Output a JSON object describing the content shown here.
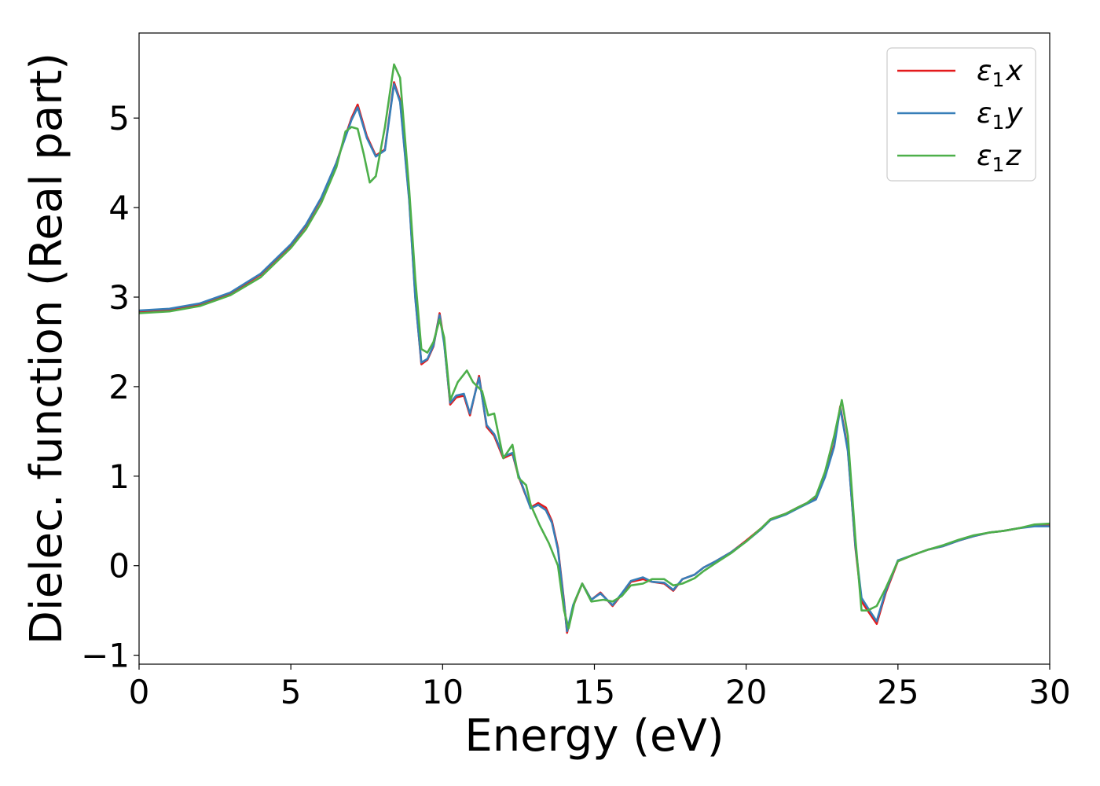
{
  "chart_data": {
    "type": "line",
    "title": "",
    "xlabel": "Energy (eV)",
    "ylabel": "Dielec. function (Real part)",
    "xlim": [
      0,
      30
    ],
    "ylim": [
      -1.1,
      5.95
    ],
    "xticks": [
      0,
      5,
      10,
      15,
      20,
      25,
      30
    ],
    "xtick_labels": [
      "0",
      "5",
      "10",
      "15",
      "20",
      "25",
      "30"
    ],
    "yticks": [
      -1,
      0,
      1,
      2,
      3,
      4,
      5
    ],
    "ytick_labels": [
      "−1",
      "0",
      "1",
      "2",
      "3",
      "4",
      "5"
    ],
    "grid": false,
    "legend_position": "top-right",
    "series": [
      {
        "name": "ε₁x",
        "legend_base": "ε",
        "legend_sub": "1",
        "legend_var": "x",
        "color": "#e41a1c",
        "points": [
          [
            0,
            2.84
          ],
          [
            1,
            2.86
          ],
          [
            2,
            2.92
          ],
          [
            3,
            3.04
          ],
          [
            4,
            3.25
          ],
          [
            5,
            3.58
          ],
          [
            5.5,
            3.8
          ],
          [
            6,
            4.1
          ],
          [
            6.5,
            4.5
          ],
          [
            7,
            5.0
          ],
          [
            7.2,
            5.15
          ],
          [
            7.5,
            4.8
          ],
          [
            7.8,
            4.58
          ],
          [
            8.1,
            4.65
          ],
          [
            8.4,
            5.4
          ],
          [
            8.6,
            5.2
          ],
          [
            8.9,
            4.1
          ],
          [
            9.1,
            3.0
          ],
          [
            9.3,
            2.25
          ],
          [
            9.5,
            2.3
          ],
          [
            9.7,
            2.45
          ],
          [
            9.9,
            2.82
          ],
          [
            10.05,
            2.5
          ],
          [
            10.25,
            1.8
          ],
          [
            10.45,
            1.88
          ],
          [
            10.7,
            1.9
          ],
          [
            10.9,
            1.68
          ],
          [
            11.2,
            2.12
          ],
          [
            11.45,
            1.55
          ],
          [
            11.7,
            1.45
          ],
          [
            12.0,
            1.2
          ],
          [
            12.3,
            1.25
          ],
          [
            12.5,
            1.0
          ],
          [
            12.7,
            0.82
          ],
          [
            12.9,
            0.65
          ],
          [
            13.15,
            0.7
          ],
          [
            13.4,
            0.65
          ],
          [
            13.6,
            0.5
          ],
          [
            13.8,
            0.2
          ],
          [
            14.0,
            -0.4
          ],
          [
            14.1,
            -0.75
          ],
          [
            14.3,
            -0.45
          ],
          [
            14.6,
            -0.2
          ],
          [
            14.9,
            -0.38
          ],
          [
            15.2,
            -0.3
          ],
          [
            15.6,
            -0.45
          ],
          [
            15.9,
            -0.32
          ],
          [
            16.2,
            -0.18
          ],
          [
            16.6,
            -0.15
          ],
          [
            16.9,
            -0.18
          ],
          [
            17.3,
            -0.2
          ],
          [
            17.6,
            -0.28
          ],
          [
            17.9,
            -0.15
          ],
          [
            18.3,
            -0.1
          ],
          [
            18.6,
            -0.02
          ],
          [
            19.0,
            0.05
          ],
          [
            19.5,
            0.15
          ],
          [
            20.0,
            0.28
          ],
          [
            20.5,
            0.42
          ],
          [
            20.8,
            0.52
          ],
          [
            21.3,
            0.58
          ],
          [
            21.7,
            0.65
          ],
          [
            22.0,
            0.7
          ],
          [
            22.3,
            0.75
          ],
          [
            22.6,
            1.0
          ],
          [
            22.9,
            1.35
          ],
          [
            23.1,
            1.78
          ],
          [
            23.35,
            1.3
          ],
          [
            23.6,
            0.2
          ],
          [
            23.8,
            -0.4
          ],
          [
            24.1,
            -0.55
          ],
          [
            24.3,
            -0.65
          ],
          [
            24.6,
            -0.3
          ],
          [
            25.0,
            0.05
          ],
          [
            25.5,
            0.12
          ],
          [
            26.0,
            0.18
          ],
          [
            26.5,
            0.22
          ],
          [
            27.0,
            0.28
          ],
          [
            27.5,
            0.33
          ],
          [
            28.0,
            0.37
          ],
          [
            28.5,
            0.39
          ],
          [
            29.0,
            0.42
          ],
          [
            29.5,
            0.45
          ],
          [
            30.0,
            0.45
          ]
        ]
      },
      {
        "name": "ε₁y",
        "legend_base": "ε",
        "legend_sub": "1",
        "legend_var": "y",
        "color": "#377eb8",
        "points": [
          [
            0,
            2.85
          ],
          [
            1,
            2.87
          ],
          [
            2,
            2.93
          ],
          [
            3,
            3.05
          ],
          [
            4,
            3.26
          ],
          [
            5,
            3.59
          ],
          [
            5.5,
            3.81
          ],
          [
            6,
            4.11
          ],
          [
            6.5,
            4.5
          ],
          [
            7,
            4.98
          ],
          [
            7.2,
            5.12
          ],
          [
            7.5,
            4.78
          ],
          [
            7.8,
            4.57
          ],
          [
            8.1,
            4.64
          ],
          [
            8.4,
            5.38
          ],
          [
            8.6,
            5.18
          ],
          [
            8.9,
            4.08
          ],
          [
            9.1,
            2.98
          ],
          [
            9.3,
            2.27
          ],
          [
            9.5,
            2.31
          ],
          [
            9.7,
            2.46
          ],
          [
            9.9,
            2.8
          ],
          [
            10.05,
            2.48
          ],
          [
            10.25,
            1.82
          ],
          [
            10.45,
            1.9
          ],
          [
            10.7,
            1.92
          ],
          [
            10.9,
            1.7
          ],
          [
            11.2,
            2.1
          ],
          [
            11.45,
            1.57
          ],
          [
            11.7,
            1.47
          ],
          [
            12.0,
            1.22
          ],
          [
            12.3,
            1.26
          ],
          [
            12.5,
            1.01
          ],
          [
            12.7,
            0.83
          ],
          [
            12.9,
            0.64
          ],
          [
            13.15,
            0.68
          ],
          [
            13.4,
            0.62
          ],
          [
            13.6,
            0.48
          ],
          [
            13.8,
            0.18
          ],
          [
            14.0,
            -0.42
          ],
          [
            14.1,
            -0.73
          ],
          [
            14.3,
            -0.44
          ],
          [
            14.6,
            -0.2
          ],
          [
            14.9,
            -0.38
          ],
          [
            15.2,
            -0.31
          ],
          [
            15.6,
            -0.44
          ],
          [
            15.9,
            -0.31
          ],
          [
            16.2,
            -0.17
          ],
          [
            16.6,
            -0.13
          ],
          [
            16.9,
            -0.18
          ],
          [
            17.3,
            -0.19
          ],
          [
            17.6,
            -0.27
          ],
          [
            17.9,
            -0.15
          ],
          [
            18.3,
            -0.1
          ],
          [
            18.6,
            -0.02
          ],
          [
            19.0,
            0.05
          ],
          [
            19.5,
            0.15
          ],
          [
            20.0,
            0.27
          ],
          [
            20.5,
            0.41
          ],
          [
            20.8,
            0.51
          ],
          [
            21.3,
            0.57
          ],
          [
            21.7,
            0.64
          ],
          [
            22.0,
            0.69
          ],
          [
            22.3,
            0.74
          ],
          [
            22.6,
            0.99
          ],
          [
            22.9,
            1.33
          ],
          [
            23.1,
            1.76
          ],
          [
            23.35,
            1.28
          ],
          [
            23.6,
            0.22
          ],
          [
            23.8,
            -0.36
          ],
          [
            24.1,
            -0.52
          ],
          [
            24.3,
            -0.62
          ],
          [
            24.6,
            -0.28
          ],
          [
            25.0,
            0.06
          ],
          [
            25.5,
            0.12
          ],
          [
            26.0,
            0.18
          ],
          [
            26.5,
            0.22
          ],
          [
            27.0,
            0.28
          ],
          [
            27.5,
            0.33
          ],
          [
            28.0,
            0.37
          ],
          [
            28.5,
            0.39
          ],
          [
            29.0,
            0.42
          ],
          [
            29.5,
            0.44
          ],
          [
            30.0,
            0.44
          ]
        ]
      },
      {
        "name": "ε₁z",
        "legend_base": "ε",
        "legend_sub": "1",
        "legend_var": "z",
        "color": "#4daf4a",
        "points": [
          [
            0,
            2.82
          ],
          [
            1,
            2.84
          ],
          [
            2,
            2.9
          ],
          [
            3,
            3.02
          ],
          [
            4,
            3.22
          ],
          [
            5,
            3.55
          ],
          [
            5.5,
            3.76
          ],
          [
            6,
            4.05
          ],
          [
            6.5,
            4.45
          ],
          [
            6.8,
            4.85
          ],
          [
            7.0,
            4.9
          ],
          [
            7.2,
            4.88
          ],
          [
            7.4,
            4.6
          ],
          [
            7.6,
            4.28
          ],
          [
            7.8,
            4.35
          ],
          [
            8.1,
            4.9
          ],
          [
            8.4,
            5.6
          ],
          [
            8.6,
            5.45
          ],
          [
            8.9,
            4.2
          ],
          [
            9.1,
            3.2
          ],
          [
            9.3,
            2.42
          ],
          [
            9.5,
            2.38
          ],
          [
            9.7,
            2.5
          ],
          [
            9.9,
            2.75
          ],
          [
            10.05,
            2.55
          ],
          [
            10.25,
            1.85
          ],
          [
            10.5,
            2.05
          ],
          [
            10.8,
            2.18
          ],
          [
            11.0,
            2.05
          ],
          [
            11.3,
            1.95
          ],
          [
            11.5,
            1.68
          ],
          [
            11.7,
            1.7
          ],
          [
            12.0,
            1.2
          ],
          [
            12.3,
            1.35
          ],
          [
            12.5,
            0.98
          ],
          [
            12.75,
            0.9
          ],
          [
            12.9,
            0.68
          ],
          [
            13.2,
            0.45
          ],
          [
            13.5,
            0.25
          ],
          [
            13.8,
            0.0
          ],
          [
            14.0,
            -0.5
          ],
          [
            14.15,
            -0.7
          ],
          [
            14.35,
            -0.4
          ],
          [
            14.6,
            -0.2
          ],
          [
            14.9,
            -0.4
          ],
          [
            15.3,
            -0.38
          ],
          [
            15.6,
            -0.4
          ],
          [
            15.9,
            -0.34
          ],
          [
            16.2,
            -0.22
          ],
          [
            16.6,
            -0.2
          ],
          [
            16.9,
            -0.15
          ],
          [
            17.3,
            -0.15
          ],
          [
            17.6,
            -0.22
          ],
          [
            17.9,
            -0.2
          ],
          [
            18.3,
            -0.14
          ],
          [
            18.6,
            -0.06
          ],
          [
            19.0,
            0.03
          ],
          [
            19.5,
            0.14
          ],
          [
            20.0,
            0.27
          ],
          [
            20.5,
            0.42
          ],
          [
            20.8,
            0.52
          ],
          [
            21.3,
            0.58
          ],
          [
            21.7,
            0.65
          ],
          [
            22.0,
            0.7
          ],
          [
            22.3,
            0.78
          ],
          [
            22.6,
            1.05
          ],
          [
            22.9,
            1.45
          ],
          [
            23.15,
            1.85
          ],
          [
            23.35,
            1.45
          ],
          [
            23.6,
            0.3
          ],
          [
            23.8,
            -0.5
          ],
          [
            24.0,
            -0.5
          ],
          [
            24.3,
            -0.45
          ],
          [
            24.6,
            -0.25
          ],
          [
            25.0,
            0.05
          ],
          [
            25.5,
            0.12
          ],
          [
            26.0,
            0.18
          ],
          [
            26.5,
            0.23
          ],
          [
            27.0,
            0.29
          ],
          [
            27.5,
            0.34
          ],
          [
            28.0,
            0.37
          ],
          [
            28.5,
            0.39
          ],
          [
            29.0,
            0.42
          ],
          [
            29.5,
            0.46
          ],
          [
            30.0,
            0.47
          ]
        ]
      }
    ]
  }
}
